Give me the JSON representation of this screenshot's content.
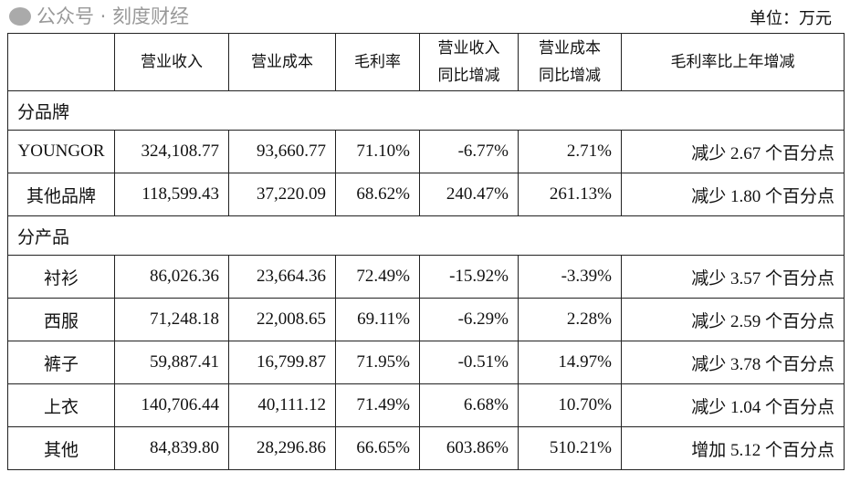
{
  "unit": "单位：万元",
  "headers": [
    "",
    "营业收入",
    "营业成本",
    "毛利率",
    "营业收入\n同比增减",
    "营业成本\n同比增减",
    "毛利率比上年增减"
  ],
  "header_lines": {
    "h4a": "营业收入",
    "h4b": "同比增减",
    "h5a": "营业成本",
    "h5b": "同比增减"
  },
  "sections": [
    {
      "title": "分品牌",
      "rows": [
        [
          "YOUNGOR",
          "324,108.77",
          "93,660.77",
          "71.10%",
          "-6.77%",
          "2.71%",
          "减少 2.67 个百分点"
        ],
        [
          "其他品牌",
          "118,599.43",
          "37,220.09",
          "68.62%",
          "240.47%",
          "261.13%",
          "减少 1.80 个百分点"
        ]
      ]
    },
    {
      "title": "分产品",
      "rows": [
        [
          "衬衫",
          "86,026.36",
          "23,664.36",
          "72.49%",
          "-15.92%",
          "-3.39%",
          "减少 3.57 个百分点"
        ],
        [
          "西服",
          "71,248.18",
          "22,008.65",
          "69.11%",
          "-6.29%",
          "2.28%",
          "减少 2.59 个百分点"
        ],
        [
          "裤子",
          "59,887.41",
          "16,799.87",
          "71.95%",
          "-0.51%",
          "14.97%",
          "减少 3.78 个百分点"
        ],
        [
          "上衣",
          "140,706.44",
          "40,111.12",
          "71.49%",
          "6.68%",
          "10.70%",
          "减少 1.04 个百分点"
        ],
        [
          "其他",
          "84,839.80",
          "28,296.86",
          "66.65%",
          "603.86%",
          "510.21%",
          "增加 5.12 个百分点"
        ]
      ]
    }
  ],
  "watermark": "公众号 · 刻度财经",
  "watermark_icon": "wechat-icon"
}
